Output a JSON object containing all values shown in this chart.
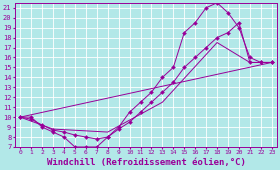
{
  "bg_color": "#b2e8e8",
  "grid_color": "#c8f0f0",
  "line_color": "#990099",
  "xlim": [
    -0.5,
    23.5
  ],
  "ylim": [
    7,
    21.5
  ],
  "xticks": [
    0,
    1,
    2,
    3,
    4,
    5,
    6,
    7,
    8,
    9,
    10,
    11,
    12,
    13,
    14,
    15,
    16,
    17,
    18,
    19,
    20,
    21,
    22,
    23
  ],
  "yticks": [
    7,
    8,
    9,
    10,
    11,
    12,
    13,
    14,
    15,
    16,
    17,
    18,
    19,
    20,
    21
  ],
  "xlabel": "Windchill (Refroidissement éolien,°C)",
  "c1x": [
    0,
    1,
    2,
    3,
    4,
    5,
    6,
    7,
    8,
    9,
    10,
    11,
    12,
    13,
    14,
    15,
    16,
    17,
    18,
    19,
    20,
    21,
    22,
    23
  ],
  "c1y": [
    10,
    10,
    9,
    8.5,
    8,
    7,
    7,
    7,
    8,
    9,
    10.5,
    11.5,
    12.5,
    14,
    15,
    18.5,
    19.5,
    21,
    21.5,
    20.5,
    19,
    16,
    15.5,
    15.5
  ],
  "c2x": [
    0,
    1,
    2,
    3,
    4,
    5,
    6,
    7,
    8,
    9,
    10,
    11,
    12,
    13,
    14,
    15,
    16,
    17,
    18,
    19,
    20,
    21,
    22,
    23
  ],
  "c2y": [
    10,
    9.8,
    9.2,
    8.7,
    8.5,
    8.2,
    8,
    7.8,
    8,
    8.8,
    9.5,
    10.5,
    11.5,
    12.5,
    13.5,
    15,
    16,
    17,
    18,
    18.5,
    19.5,
    15.5,
    15.5,
    15.5
  ],
  "c3x": [
    0,
    23
  ],
  "c3y": [
    10,
    15.5
  ],
  "c4x": [
    0,
    3,
    8,
    13,
    18,
    21,
    22,
    23
  ],
  "c4y": [
    10,
    8.8,
    8.5,
    11.5,
    17.5,
    15.5,
    15.5,
    15.5
  ],
  "font_size": 6.5,
  "tick_font_size": 5.5
}
